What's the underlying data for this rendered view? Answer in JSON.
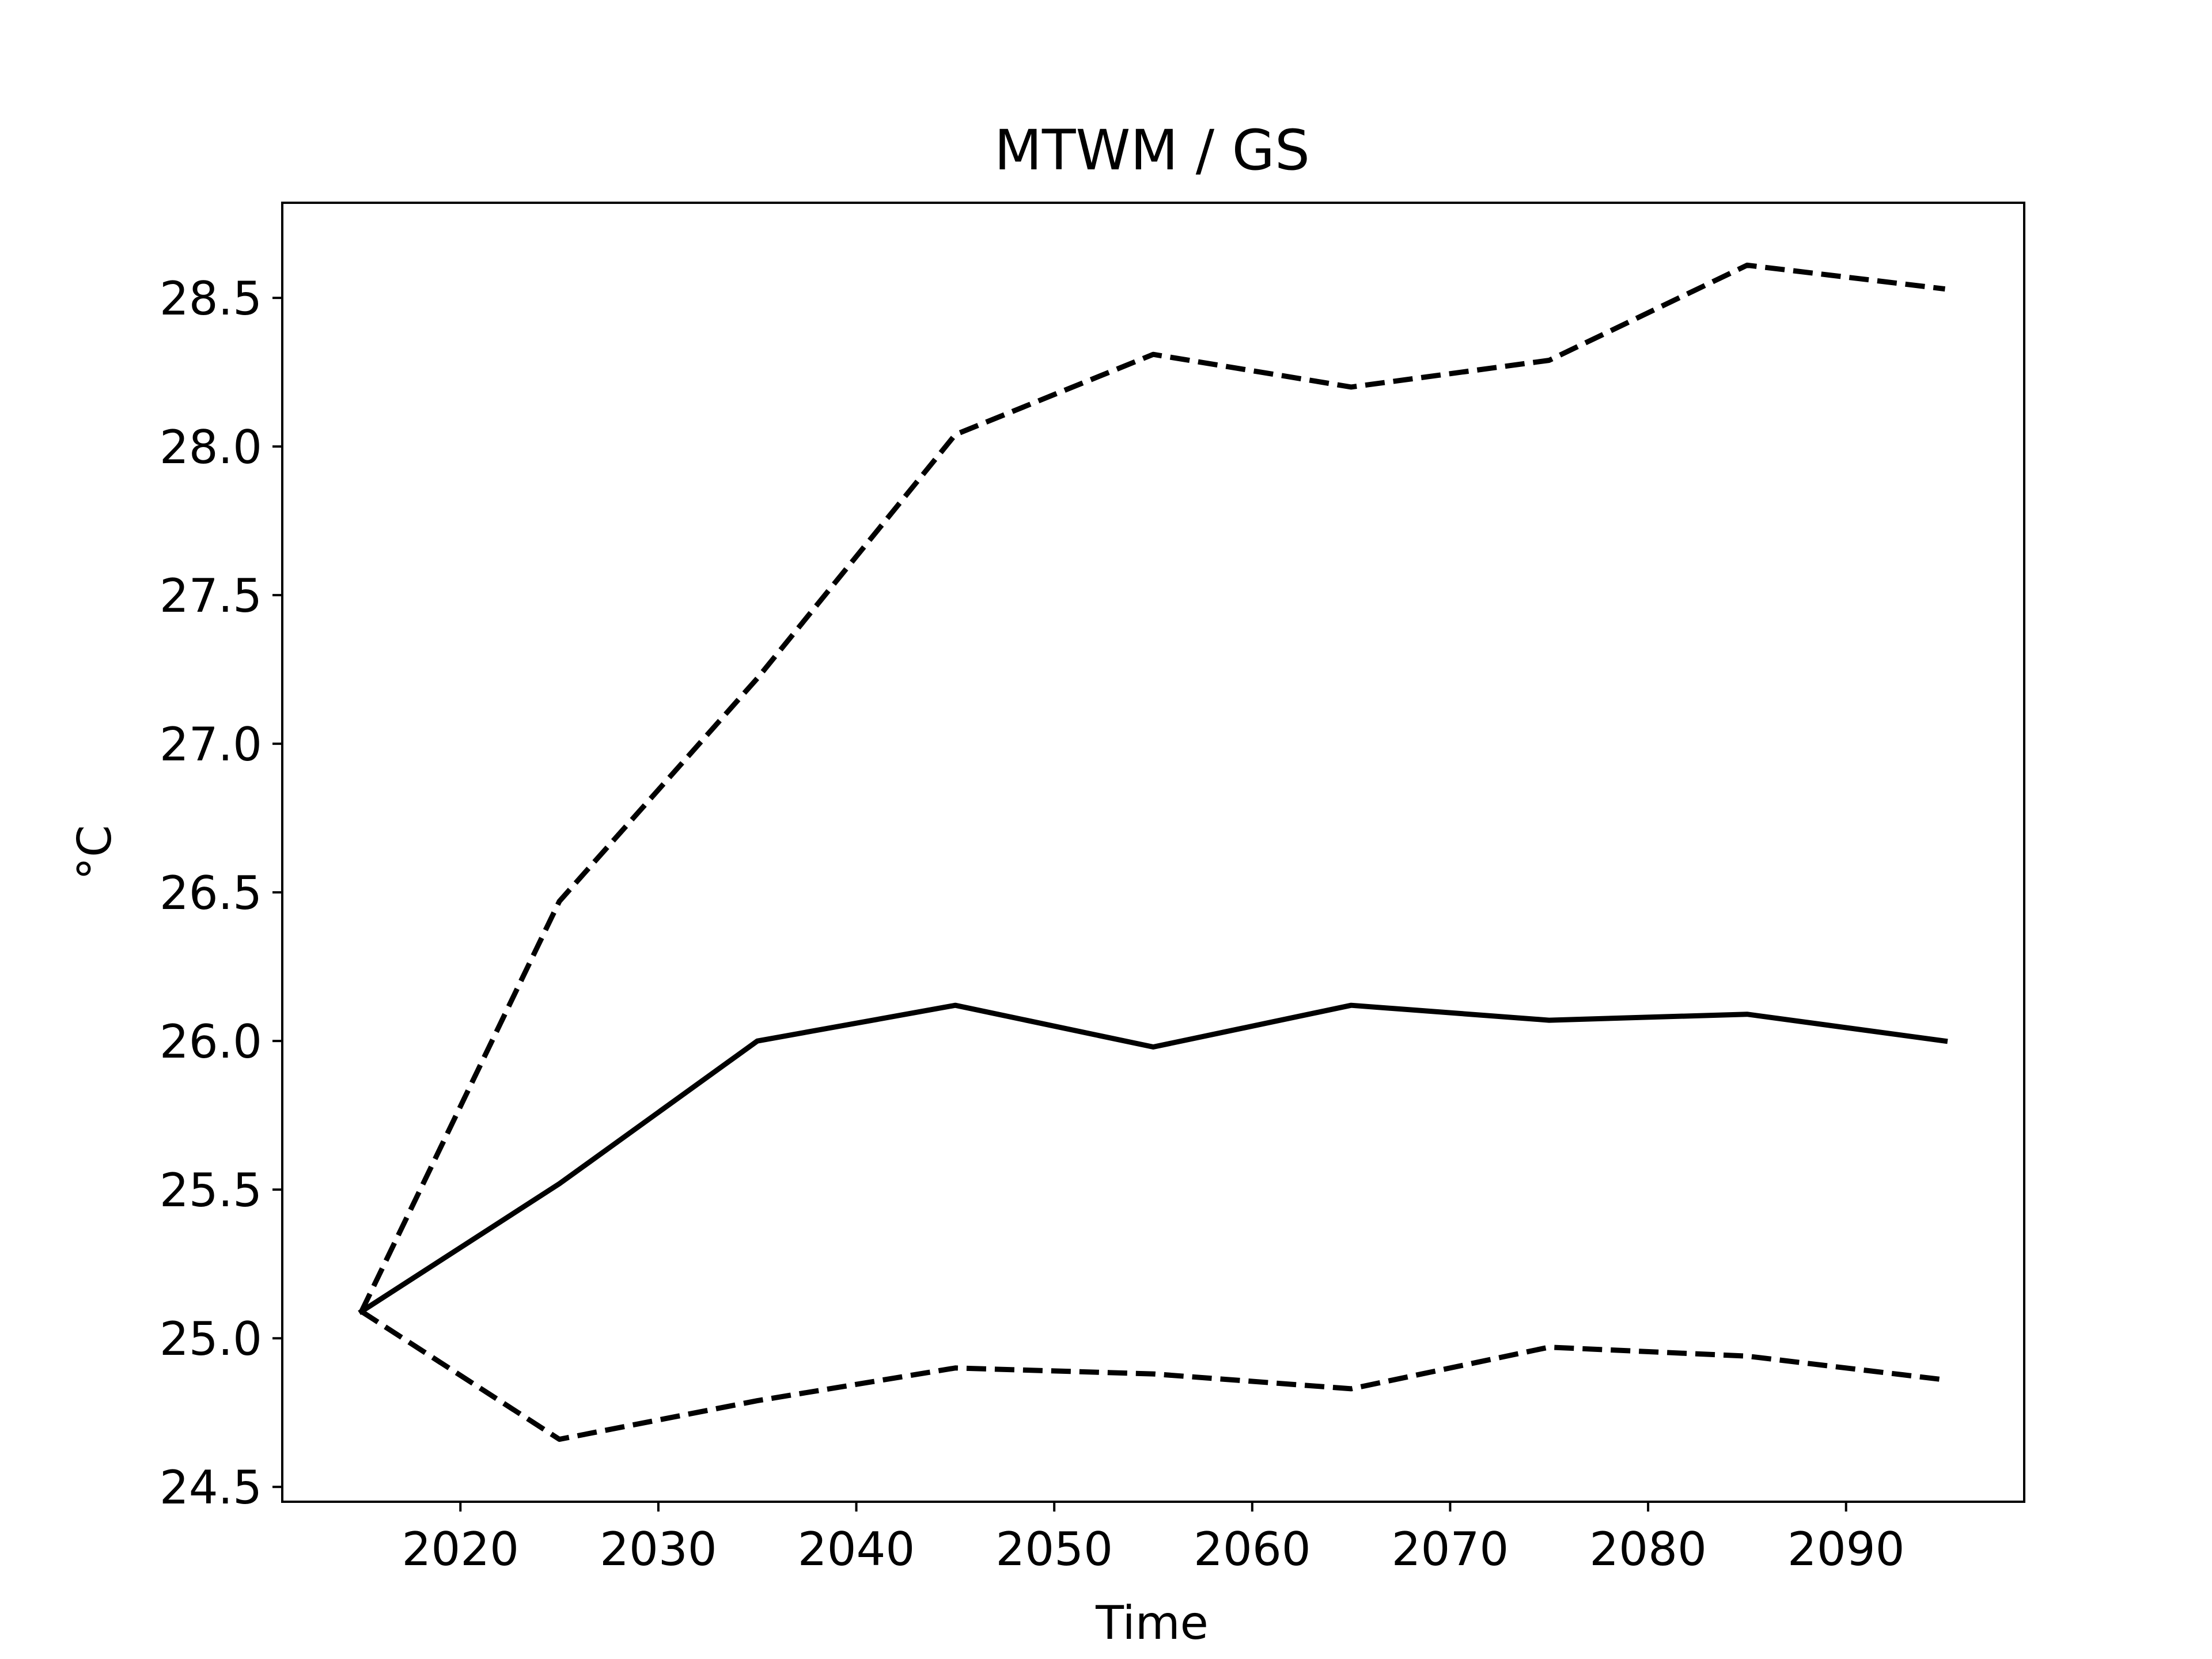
{
  "chart_data": {
    "type": "line",
    "title": "MTWM / GS",
    "xlabel": "Time",
    "ylabel": "°C",
    "xlim": [
      2011,
      2099
    ],
    "ylim": [
      24.45,
      28.82
    ],
    "xticks": [
      2020,
      2030,
      2040,
      2050,
      2060,
      2070,
      2080,
      2090
    ],
    "xtick_labels": [
      "2020",
      "2030",
      "2040",
      "2050",
      "2060",
      "2070",
      "2080",
      "2090"
    ],
    "yticks": [
      24.5,
      25.0,
      25.5,
      26.0,
      26.5,
      27.0,
      27.5,
      28.0,
      28.5
    ],
    "ytick_labels": [
      "24.5",
      "25.0",
      "25.5",
      "26.0",
      "26.5",
      "27.0",
      "27.5",
      "28.0",
      "28.5"
    ],
    "grid": false,
    "x": [
      2015,
      2025,
      2035,
      2045,
      2055,
      2065,
      2075,
      2085,
      2095
    ],
    "series": [
      {
        "style": "solid",
        "color": "#000000",
        "values": [
          25.09,
          25.52,
          26.0,
          26.12,
          25.98,
          26.12,
          26.07,
          26.09,
          26.0
        ]
      },
      {
        "style": "dashed",
        "color": "#000000",
        "values": [
          25.09,
          26.47,
          27.22,
          28.04,
          28.31,
          28.2,
          28.29,
          28.61,
          28.53
        ]
      },
      {
        "style": "dashed",
        "color": "#000000",
        "values": [
          25.09,
          24.66,
          24.79,
          24.9,
          24.88,
          24.83,
          24.97,
          24.94,
          24.86
        ]
      }
    ]
  }
}
